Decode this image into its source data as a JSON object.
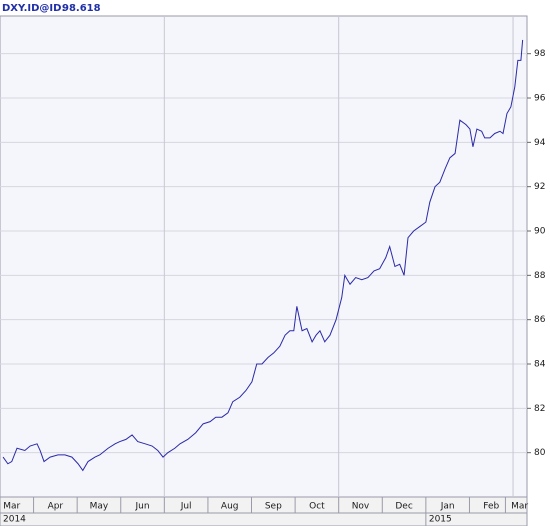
{
  "chart_data": {
    "type": "line",
    "title": "DXY.ID@ID:",
    "last_value": "98.618",
    "color": "#2a2aa8",
    "grid": true,
    "xlim": [
      0.23,
      12.32
    ],
    "ylim": [
      78,
      99.7
    ],
    "yticks": [
      80,
      82,
      84,
      86,
      88,
      90,
      92,
      94,
      96,
      98
    ],
    "xticks": [
      {
        "value": 0.5,
        "label": "Mar"
      },
      {
        "value": 1.5,
        "label": "Apr"
      },
      {
        "value": 2.5,
        "label": "May"
      },
      {
        "value": 3.5,
        "label": "Jun"
      },
      {
        "value": 4.5,
        "label": "Jul"
      },
      {
        "value": 5.5,
        "label": "Aug"
      },
      {
        "value": 6.5,
        "label": "Sep"
      },
      {
        "value": 7.5,
        "label": "Oct"
      },
      {
        "value": 8.5,
        "label": "Nov"
      },
      {
        "value": 9.5,
        "label": "Dec"
      },
      {
        "value": 10.5,
        "label": "Jan"
      },
      {
        "value": 11.5,
        "label": "Feb"
      },
      {
        "value": 12.15,
        "label": "Mar"
      }
    ],
    "xgrid": [
      4,
      8,
      12
    ],
    "year_labels": [
      {
        "value": 0.23,
        "label": "2014"
      },
      {
        "value": 10,
        "label": "2015"
      }
    ],
    "x": [
      0.3,
      0.41,
      0.5,
      0.62,
      0.8,
      0.92,
      1.08,
      1.15,
      1.24,
      1.38,
      1.56,
      1.72,
      1.88,
      2.02,
      2.13,
      2.25,
      2.41,
      2.52,
      2.71,
      2.87,
      2.98,
      3.12,
      3.26,
      3.39,
      3.56,
      3.72,
      3.85,
      3.97,
      4.08,
      4.24,
      4.36,
      4.54,
      4.72,
      4.89,
      5.05,
      5.18,
      5.32,
      5.46,
      5.57,
      5.73,
      5.87,
      6.01,
      6.12,
      6.24,
      6.38,
      6.51,
      6.65,
      6.77,
      6.88,
      6.97,
      7.04,
      7.16,
      7.27,
      7.39,
      7.48,
      7.57,
      7.68,
      7.8,
      7.94,
      8.07,
      8.14,
      8.26,
      8.39,
      8.53,
      8.67,
      8.81,
      8.94,
      9.08,
      9.17,
      9.29,
      9.4,
      9.5,
      9.59,
      9.72,
      9.86,
      10.0,
      10.09,
      10.21,
      10.32,
      10.44,
      10.55,
      10.67,
      10.78,
      10.92,
      11.01,
      11.08,
      11.17,
      11.28,
      11.35,
      11.47,
      11.58,
      11.7,
      11.77,
      11.86,
      11.95,
      12.04,
      12.11,
      12.18,
      12.22
    ],
    "values": [
      79.8,
      79.5,
      79.6,
      80.2,
      80.1,
      80.3,
      80.4,
      80.1,
      79.6,
      79.8,
      79.9,
      79.9,
      79.8,
      79.5,
      79.2,
      79.6,
      79.8,
      79.9,
      80.2,
      80.4,
      80.5,
      80.6,
      80.8,
      80.5,
      80.4,
      80.3,
      80.1,
      79.8,
      80.0,
      80.2,
      80.4,
      80.6,
      80.9,
      81.3,
      81.4,
      81.6,
      81.6,
      81.8,
      82.3,
      82.5,
      82.8,
      83.2,
      84.0,
      84.0,
      84.3,
      84.5,
      84.8,
      85.3,
      85.5,
      85.5,
      86.6,
      85.5,
      85.6,
      85.0,
      85.3,
      85.5,
      85.0,
      85.3,
      86.0,
      87.0,
      88.0,
      87.6,
      87.9,
      87.8,
      87.9,
      88.2,
      88.3,
      88.8,
      89.3,
      88.4,
      88.5,
      88.0,
      89.7,
      90.0,
      90.2,
      90.4,
      91.3,
      92.0,
      92.2,
      92.8,
      93.3,
      93.5,
      95.0,
      94.8,
      94.6,
      93.8,
      94.6,
      94.5,
      94.2,
      94.2,
      94.4,
      94.5,
      94.4,
      95.3,
      95.6,
      96.5,
      97.7,
      97.7,
      98.618
    ]
  }
}
